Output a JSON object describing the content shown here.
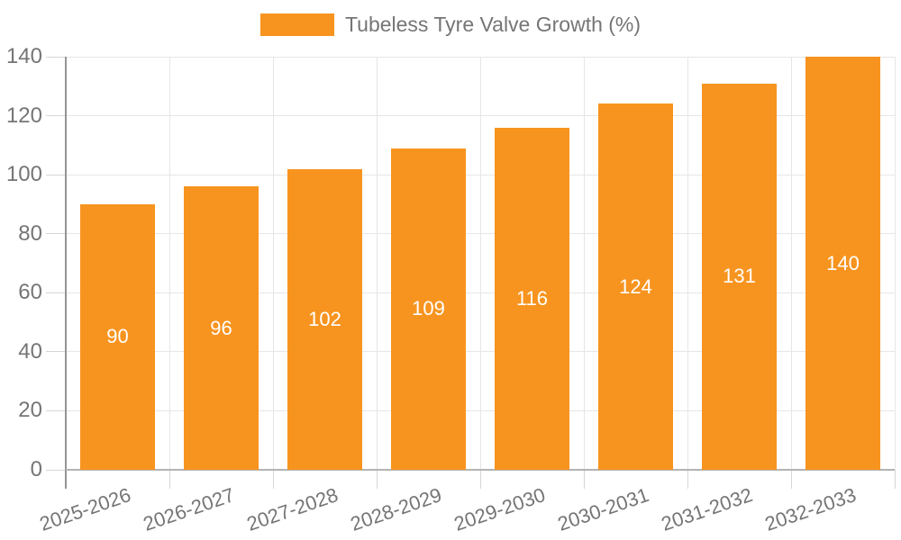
{
  "legend": {
    "label": "Tubeless Tyre Valve Growth (%)"
  },
  "chart_data": {
    "type": "bar",
    "title": "",
    "xlabel": "",
    "ylabel": "",
    "categories": [
      "2025-2026",
      "2026-2027",
      "2027-2028",
      "2028-2029",
      "2029-2030",
      "2030-2031",
      "2031-2032",
      "2032-2033"
    ],
    "series": [
      {
        "name": "Tubeless Tyre Valve Growth (%)",
        "values": [
          90,
          96,
          102,
          109,
          116,
          124,
          131,
          140
        ],
        "color": "#f7941f"
      }
    ],
    "bar_labels_shown": true,
    "bar_label_position": "inside-center",
    "ylim": [
      0,
      140
    ],
    "yticks": [
      0,
      20,
      40,
      60,
      80,
      100,
      120,
      140
    ],
    "grid": true,
    "legend_position": "top-center",
    "colors": {
      "bar": "#f7941f",
      "bar_label": "#ffffff",
      "axis_text": "#757575",
      "gridline": "#e6e6e6",
      "x_axis_line": "#b3b3b3",
      "y_axis_line": "#949494",
      "tick": "#d6d6d6",
      "background": "#ffffff"
    }
  }
}
